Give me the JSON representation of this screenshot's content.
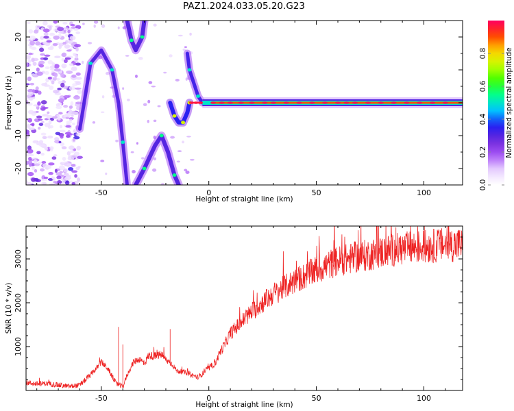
{
  "title": "PAZ1.2024.033.05.20.G23",
  "chart_data": [
    {
      "type": "heatmap",
      "xlabel": "Height of straight line (km)",
      "ylabel": "Frequency (Hz)",
      "xlim": [
        -85,
        118
      ],
      "ylim": [
        -25,
        25
      ],
      "x_ticks": [
        -50,
        0,
        50,
        100
      ],
      "y_ticks": [
        -20,
        -10,
        0,
        10,
        20
      ],
      "colorbar": {
        "label": "Normalized spectral amplitude",
        "range": [
          0,
          1
        ],
        "ticks": [
          0.0,
          0.2,
          0.4,
          0.6,
          0.8
        ],
        "colormap": [
          "#ffffff",
          "#e9d5ff",
          "#a855f7",
          "#6d28d9",
          "#1e1ef5",
          "#00c8ff",
          "#00ff90",
          "#3cff00",
          "#c8ff00",
          "#ffd000",
          "#ff4000",
          "#ff0060"
        ]
      },
      "features": {
        "carrier_line": {
          "x_range": [
            -3,
            118
          ],
          "frequency": 0,
          "amplitude": 0.9
        },
        "noise_scatter": {
          "x_range": [
            -85,
            -64
          ],
          "frequency_range": [
            -25,
            25
          ]
        },
        "dispersive_track_left": [
          [
            -60,
            -8
          ],
          [
            -55,
            12
          ],
          [
            -50,
            16
          ],
          [
            -45,
            10
          ],
          [
            -42,
            0
          ],
          [
            -40,
            -12
          ],
          [
            -38,
            -25
          ]
        ],
        "upper_loop": [
          [
            -38,
            25
          ],
          [
            -36,
            19
          ],
          [
            -34,
            16
          ],
          [
            -31,
            20
          ],
          [
            -30,
            25
          ]
        ],
        "lower_loop": [
          [
            -34,
            -25
          ],
          [
            -30,
            -20
          ],
          [
            -25,
            -13
          ],
          [
            -22,
            -10
          ],
          [
            -19,
            -15
          ],
          [
            -16,
            -22
          ],
          [
            -14,
            -25
          ]
        ],
        "central_peak": [
          [
            -18,
            0
          ],
          [
            -16,
            -4
          ],
          [
            -14,
            -6
          ],
          [
            -12,
            -6
          ],
          [
            -10,
            -3
          ],
          [
            -9,
            0
          ]
        ],
        "near_zero_tail": [
          [
            -10,
            15
          ],
          [
            -9,
            10
          ],
          [
            -7,
            6
          ],
          [
            -5,
            2
          ],
          [
            -3,
            0
          ]
        ],
        "dots_x": [
          -8,
          -6,
          -4,
          2,
          6,
          10,
          15,
          20,
          26,
          30,
          36,
          42,
          48,
          54,
          60,
          64,
          68,
          74,
          80,
          86,
          92,
          98,
          104,
          110
        ]
      }
    },
    {
      "type": "line",
      "xlabel": "Height of straight line (km)",
      "ylabel": "SNR (10 * v/v)",
      "xlim": [
        -85,
        118
      ],
      "ylim": [
        0,
        3750
      ],
      "x_ticks": [
        -50,
        0,
        50,
        100
      ],
      "y_ticks": [
        1000,
        2000,
        3000
      ],
      "color": "#ee2222",
      "x": [
        -85,
        -80,
        -75,
        -70,
        -65,
        -60,
        -55,
        -52,
        -50,
        -47,
        -45,
        -43,
        -42,
        -40,
        -38,
        -35,
        -32,
        -30,
        -28,
        -25,
        -22,
        -20,
        -17,
        -15,
        -12,
        -10,
        -8,
        -5,
        -3,
        -1,
        0,
        3,
        5,
        8,
        10,
        15,
        20,
        25,
        30,
        35,
        40,
        45,
        50,
        55,
        60,
        65,
        70,
        75,
        80,
        85,
        90,
        95,
        100,
        105,
        110,
        118
      ],
      "y": [
        180,
        150,
        160,
        120,
        90,
        120,
        350,
        520,
        650,
        500,
        320,
        150,
        130,
        80,
        350,
        650,
        720,
        600,
        800,
        780,
        820,
        700,
        600,
        450,
        420,
        400,
        350,
        300,
        380,
        480,
        500,
        620,
        850,
        1100,
        1300,
        1550,
        1800,
        2000,
        2200,
        2350,
        2500,
        2620,
        2750,
        2850,
        2950,
        3000,
        3050,
        3100,
        3150,
        3200,
        3230,
        3260,
        3280,
        3300,
        3320,
        3330
      ]
    }
  ]
}
